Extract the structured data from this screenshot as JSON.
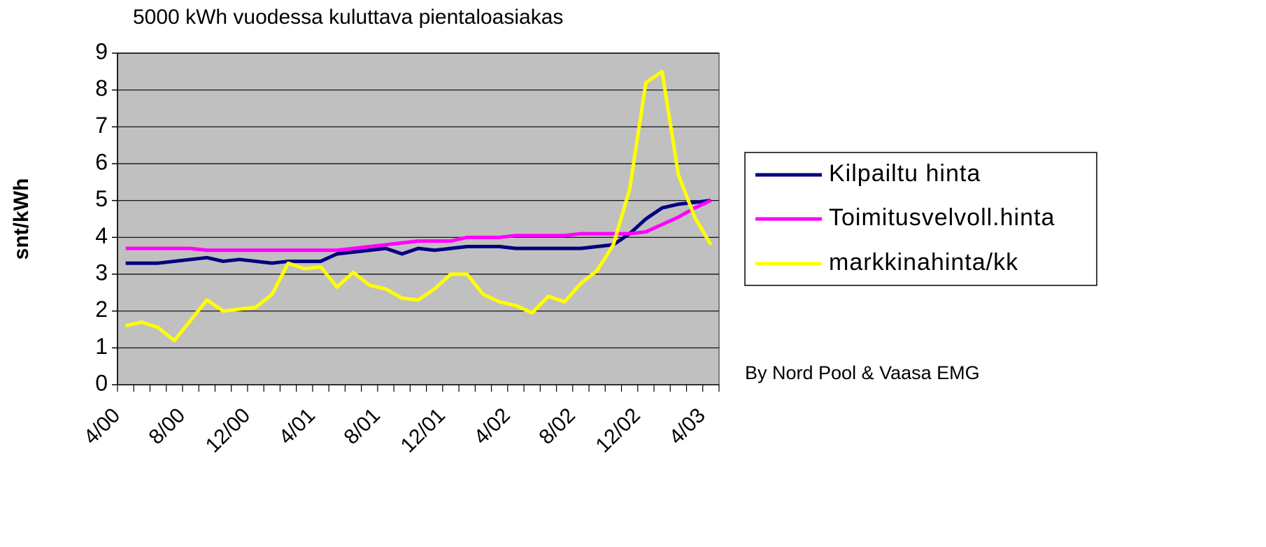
{
  "chart_data": {
    "type": "line",
    "title": "5000 kWh vuodessa kuluttava pientaloasiakas",
    "y_label": "snt/kWh",
    "source": "By Nord Pool & Vaasa EMG",
    "categories": [
      "4/00",
      null,
      null,
      null,
      "8/00",
      null,
      null,
      null,
      "12/00",
      null,
      null,
      null,
      "4/01",
      null,
      null,
      null,
      "8/01",
      null,
      null,
      null,
      "12/01",
      null,
      null,
      null,
      "4/02",
      null,
      null,
      null,
      "8/02",
      null,
      null,
      null,
      "12/02",
      null,
      null,
      null,
      "4/03"
    ],
    "series": [
      {
        "name": "Kilpailtu hinta",
        "color": "#000080",
        "values": [
          3.3,
          3.3,
          3.3,
          3.35,
          3.4,
          3.45,
          3.35,
          3.4,
          3.35,
          3.3,
          3.35,
          3.35,
          3.35,
          3.55,
          3.6,
          3.65,
          3.7,
          3.55,
          3.7,
          3.65,
          3.7,
          3.75,
          3.75,
          3.75,
          3.7,
          3.7,
          3.7,
          3.7,
          3.7,
          3.75,
          3.8,
          4.1,
          4.5,
          4.8,
          4.9,
          4.95,
          5.0
        ]
      },
      {
        "name": "Toimitusvelvoll.hinta",
        "color": "#ff00ff",
        "values": [
          3.7,
          3.7,
          3.7,
          3.7,
          3.7,
          3.65,
          3.65,
          3.65,
          3.65,
          3.65,
          3.65,
          3.65,
          3.65,
          3.65,
          3.7,
          3.75,
          3.8,
          3.85,
          3.9,
          3.9,
          3.9,
          4.0,
          4.0,
          4.0,
          4.05,
          4.05,
          4.05,
          4.05,
          4.1,
          4.1,
          4.1,
          4.1,
          4.15,
          4.35,
          4.55,
          4.8,
          5.0
        ]
      },
      {
        "name": "markkinahinta/kk",
        "color": "#ffff00",
        "values": [
          1.6,
          1.7,
          1.55,
          1.2,
          1.75,
          2.3,
          2.0,
          2.05,
          2.1,
          2.45,
          3.3,
          3.15,
          3.2,
          2.65,
          3.05,
          2.7,
          2.6,
          2.35,
          2.3,
          2.6,
          3.0,
          3.0,
          2.45,
          2.25,
          2.15,
          1.95,
          2.4,
          2.25,
          2.75,
          3.1,
          3.8,
          5.3,
          8.2,
          8.5,
          5.7,
          4.55,
          3.8
        ]
      }
    ],
    "ylim": [
      0,
      9
    ],
    "yticks": [
      0,
      1,
      2,
      3,
      4,
      5,
      6,
      7,
      8,
      9
    ],
    "grid": true,
    "plot_background": "#c0c0c0",
    "legend": "right"
  }
}
